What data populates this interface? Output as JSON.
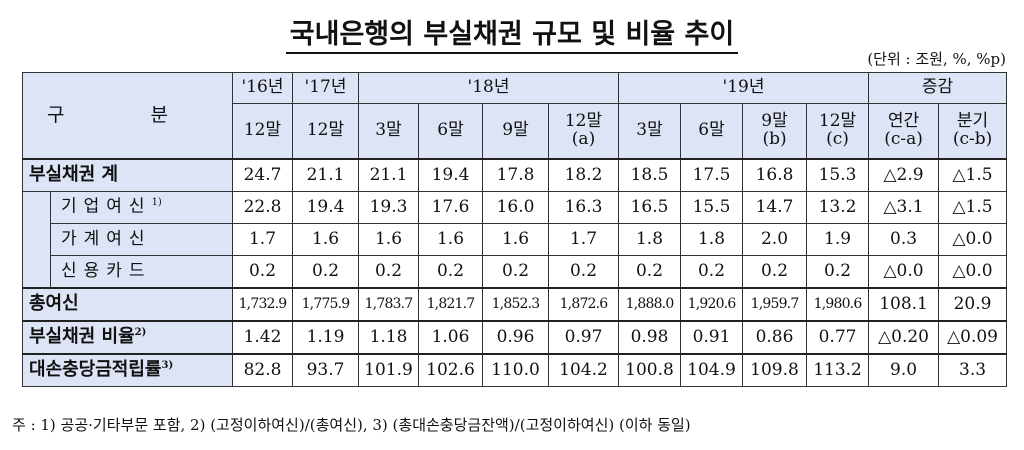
{
  "header": {
    "title": "국내은행의 부실채권 규모 및 비율 추이",
    "unit": "(단위 : 조원, %, %p)"
  },
  "table": {
    "corner": "구 분",
    "year_headers": [
      {
        "text": "'16년",
        "span": 1
      },
      {
        "text": "'17년",
        "span": 1
      },
      {
        "text": "'18년",
        "span": 4
      },
      {
        "text": "'19년",
        "span": 4
      },
      {
        "text": "증감",
        "span": 2
      }
    ],
    "sub_headers": [
      [
        "12말"
      ],
      [
        "12말"
      ],
      [
        "3말"
      ],
      [
        "6말"
      ],
      [
        "9말"
      ],
      [
        "12말",
        "(a)"
      ],
      [
        "3말"
      ],
      [
        "6말"
      ],
      [
        "9말",
        "(b)"
      ],
      [
        "12말",
        "(c)"
      ],
      [
        "연간",
        "(c-a)"
      ],
      [
        "분기",
        "(c-b)"
      ]
    ],
    "rows": [
      {
        "label": "부실채권 계",
        "kind": "main",
        "values": [
          "24.7",
          "21.1",
          "21.1",
          "19.4",
          "17.8",
          "18.2",
          "18.5",
          "17.5",
          "16.8",
          "15.3",
          "△2.9",
          "△1.5"
        ]
      },
      {
        "label": "기업여신",
        "note": "1)",
        "kind": "sub",
        "values": [
          "22.8",
          "19.4",
          "19.3",
          "17.6",
          "16.0",
          "16.3",
          "16.5",
          "15.5",
          "14.7",
          "13.2",
          "△3.1",
          "△1.5"
        ]
      },
      {
        "label": "가계여신",
        "kind": "sub",
        "values": [
          "1.7",
          "1.6",
          "1.6",
          "1.6",
          "1.6",
          "1.7",
          "1.8",
          "1.8",
          "2.0",
          "1.9",
          "0.3",
          "△0.0"
        ]
      },
      {
        "label": "신용카드",
        "kind": "sub",
        "values": [
          "0.2",
          "0.2",
          "0.2",
          "0.2",
          "0.2",
          "0.2",
          "0.2",
          "0.2",
          "0.2",
          "0.2",
          "△0.0",
          "△0.0"
        ]
      },
      {
        "label": "총여신",
        "kind": "main",
        "values": [
          "1,732.9",
          "1,775.9",
          "1,783.7",
          "1,821.7",
          "1,852.3",
          "1,872.6",
          "1,888.0",
          "1,920.6",
          "1,959.7",
          "1,980.6",
          "108.1",
          "20.9"
        ]
      },
      {
        "label": "부실채권 비율",
        "note": "2)",
        "kind": "main",
        "values": [
          "1.42",
          "1.19",
          "1.18",
          "1.06",
          "0.96",
          "0.97",
          "0.98",
          "0.91",
          "0.86",
          "0.77",
          "△0.20",
          "△0.09"
        ]
      },
      {
        "label": "대손충당금적립률",
        "note": "3)",
        "kind": "main",
        "values": [
          "82.8",
          "93.7",
          "101.9",
          "102.6",
          "110.0",
          "104.2",
          "100.8",
          "104.9",
          "109.8",
          "113.2",
          "9.0",
          "3.3"
        ]
      }
    ]
  },
  "footnote": "주 : 1) 공공·기타부문 포함, 2) (고정이하여신)/(총여신), 3) (총대손충당금잔액)/(고정이하여신) (이하 동일)"
}
